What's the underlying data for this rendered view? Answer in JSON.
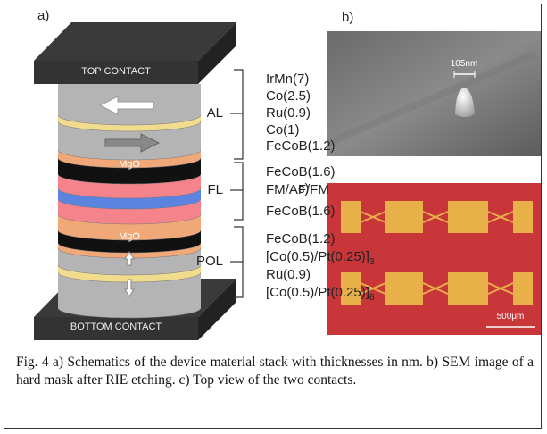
{
  "panels": {
    "a": "a)",
    "b": "b)",
    "c": "c)"
  },
  "stack": {
    "top_contact": "TOP CONTACT",
    "bottom_contact": "BOTTOM CONTACT",
    "barrier_labels": [
      "MgO",
      "MgO"
    ]
  },
  "groups": [
    {
      "label": "AL",
      "layers": [
        {
          "text": "IrMn(7)"
        },
        {
          "text": "Co(2.5)"
        },
        {
          "text": "Ru(0.9)"
        },
        {
          "text": "Co(1)"
        },
        {
          "text": "FeCoB(1.2)"
        }
      ]
    },
    {
      "label": "FL",
      "layers": [
        {
          "text": "FeCoB(1.6)"
        },
        {
          "text": "FM/AF/FM"
        },
        {
          "text": "FeCoB(1.6)"
        }
      ]
    },
    {
      "label": "POL",
      "layers": [
        {
          "text": "FeCoB(1.2)"
        },
        {
          "text": "[Co(0.5)/Pt(0.25)]",
          "sub": "3"
        },
        {
          "text": "Ru(0.9)"
        },
        {
          "text": "[Co(0.5)/Pt(0.25)]",
          "sub": "6"
        }
      ]
    }
  ],
  "sem": {
    "scale_label": "105nm"
  },
  "top_view": {
    "scale_label": "500μm"
  },
  "caption": "Fig. 4 a) Schematics of the device material stack with thicknesses in nm. b) SEM image of a hard mask after RIE etching. c) Top view of the two contacts."
}
